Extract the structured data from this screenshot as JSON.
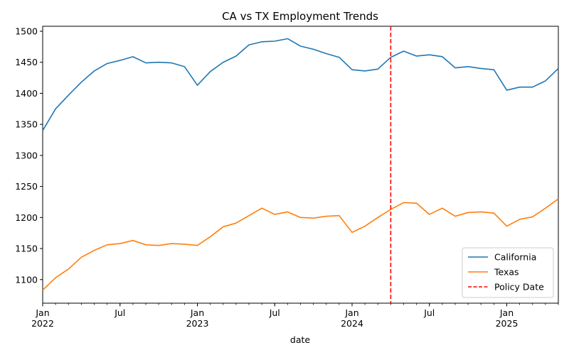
{
  "chart_data": {
    "type": "line",
    "title": "CA vs TX Employment Trends",
    "xlabel": "date",
    "ylabel": "",
    "xlim": [
      "2022-01",
      "2025-05"
    ],
    "ylim": [
      1062,
      1508
    ],
    "y_ticks": [
      1100,
      1150,
      1200,
      1250,
      1300,
      1350,
      1400,
      1450,
      1500
    ],
    "x_ticks": [
      {
        "date": "2022-01",
        "label": "Jan",
        "year": "2022"
      },
      {
        "date": "2022-07",
        "label": "Jul",
        "year": ""
      },
      {
        "date": "2023-01",
        "label": "Jan",
        "year": "2023"
      },
      {
        "date": "2023-07",
        "label": "Jul",
        "year": ""
      },
      {
        "date": "2024-01",
        "label": "Jan",
        "year": "2024"
      },
      {
        "date": "2024-07",
        "label": "Jul",
        "year": ""
      },
      {
        "date": "2025-01",
        "label": "Jan",
        "year": "2025"
      }
    ],
    "x": [
      "2022-01",
      "2022-02",
      "2022-03",
      "2022-04",
      "2022-05",
      "2022-06",
      "2022-07",
      "2022-08",
      "2022-09",
      "2022-10",
      "2022-11",
      "2022-12",
      "2023-01",
      "2023-02",
      "2023-03",
      "2023-04",
      "2023-05",
      "2023-06",
      "2023-07",
      "2023-08",
      "2023-09",
      "2023-10",
      "2023-11",
      "2023-12",
      "2024-01",
      "2024-02",
      "2024-03",
      "2024-04",
      "2024-05",
      "2024-06",
      "2024-07",
      "2024-08",
      "2024-09",
      "2024-10",
      "2024-11",
      "2024-12",
      "2025-01",
      "2025-02",
      "2025-03",
      "2025-04",
      "2025-05"
    ],
    "series": [
      {
        "name": "California",
        "color": "#1f77b4",
        "style": "solid",
        "values": [
          1340,
          1375,
          1397,
          1418,
          1436,
          1448,
          1453,
          1459,
          1449,
          1450,
          1449,
          1443,
          1413,
          1435,
          1450,
          1460,
          1478,
          1483,
          1484,
          1488,
          1476,
          1471,
          1464,
          1458,
          1438,
          1436,
          1439,
          1458,
          1468,
          1460,
          1462,
          1459,
          1441,
          1443,
          1440,
          1438,
          1405,
          1410,
          1410,
          1420,
          1440
        ]
      },
      {
        "name": "Texas",
        "color": "#ff7f0e",
        "style": "solid",
        "values": [
          1083,
          1103,
          1117,
          1136,
          1147,
          1156,
          1158,
          1163,
          1156,
          1155,
          1158,
          1157,
          1155,
          1169,
          1185,
          1191,
          1203,
          1215,
          1205,
          1209,
          1200,
          1199,
          1202,
          1203,
          1176,
          1186,
          1200,
          1213,
          1224,
          1223,
          1205,
          1215,
          1202,
          1208,
          1209,
          1207,
          1186,
          1197,
          1201,
          1215,
          1230
        ]
      }
    ],
    "vlines": [
      {
        "name": "Policy Date",
        "date": "2024-04",
        "color": "#ff0000",
        "style": "dashed"
      }
    ],
    "legend": {
      "position": "lower-right",
      "entries": [
        "California",
        "Texas",
        "Policy Date"
      ]
    }
  }
}
